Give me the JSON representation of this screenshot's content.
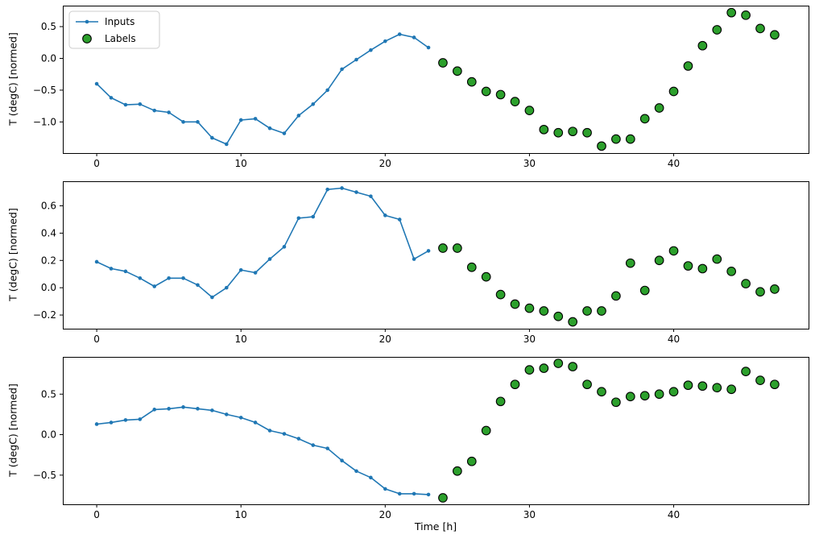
{
  "figure": {
    "xlabel": "Time [h]",
    "ylabel": "T (degC) [normed]",
    "legend": {
      "items": [
        {
          "label": "Inputs",
          "marker": "line-dot",
          "color": "#1f77b4"
        },
        {
          "label": "Labels",
          "marker": "circle",
          "color": "#2ca02c",
          "edge": "#000000"
        }
      ]
    }
  },
  "colors": {
    "inputs": "#1f77b4",
    "labels": "#2ca02c",
    "labels_edge": "#000000",
    "spine": "#000000",
    "background": "#ffffff"
  },
  "chart_data": [
    {
      "type": "line",
      "title": "",
      "xlabel": "",
      "ylabel": "T (degC) [normed]",
      "legend": true,
      "xlim": [
        -2.35,
        49.35
      ],
      "ylim": [
        -1.49,
        0.83
      ],
      "xticks": [
        0,
        10,
        20,
        30,
        40
      ],
      "xtick_labels": [
        "0",
        "10",
        "20",
        "30",
        "40"
      ],
      "yticks": [
        0.5,
        0.0,
        -0.5,
        -1.0
      ],
      "ytick_labels": [
        "0.5",
        "0.0",
        "−0.5",
        "−1.0"
      ],
      "grid": false,
      "series": [
        {
          "name": "Inputs",
          "type": "line",
          "color": "#1f77b4",
          "x": [
            0,
            1,
            2,
            3,
            4,
            5,
            6,
            7,
            8,
            9,
            10,
            11,
            12,
            13,
            14,
            15,
            16,
            17,
            18,
            19,
            20,
            21,
            22,
            23
          ],
          "values": [
            -0.4,
            -0.62,
            -0.73,
            -0.72,
            -0.82,
            -0.85,
            -1.0,
            -1.0,
            -1.25,
            -1.35,
            -0.97,
            -0.95,
            -1.1,
            -1.18,
            -0.9,
            -0.72,
            -0.5,
            -0.17,
            -0.02,
            0.13,
            0.27,
            0.38,
            0.33,
            0.17
          ]
        },
        {
          "name": "Labels",
          "type": "scatter",
          "color": "#2ca02c",
          "edge": "#000000",
          "x": [
            24,
            25,
            26,
            27,
            28,
            29,
            30,
            31,
            32,
            33,
            34,
            35,
            36,
            37,
            38,
            39,
            40,
            41,
            42,
            43,
            44,
            45,
            46,
            47
          ],
          "values": [
            -0.07,
            -0.2,
            -0.37,
            -0.52,
            -0.57,
            -0.68,
            -0.82,
            -1.12,
            -1.17,
            -1.15,
            -1.17,
            -1.38,
            -1.27,
            -1.27,
            -0.95,
            -0.78,
            -0.52,
            -0.12,
            0.2,
            0.45,
            0.72,
            0.68,
            0.47,
            0.37
          ]
        }
      ]
    },
    {
      "type": "line",
      "title": "",
      "xlabel": "",
      "ylabel": "T (degC) [normed]",
      "legend": false,
      "xlim": [
        -2.35,
        49.35
      ],
      "ylim": [
        -0.3,
        0.78
      ],
      "xticks": [
        0,
        10,
        20,
        30,
        40
      ],
      "xtick_labels": [
        "0",
        "10",
        "20",
        "30",
        "40"
      ],
      "yticks": [
        0.6,
        0.4,
        0.2,
        0.0,
        -0.2
      ],
      "ytick_labels": [
        "0.6",
        "0.4",
        "0.2",
        "0.0",
        "−0.2"
      ],
      "grid": false,
      "series": [
        {
          "name": "Inputs",
          "type": "line",
          "color": "#1f77b4",
          "x": [
            0,
            1,
            2,
            3,
            4,
            5,
            6,
            7,
            8,
            9,
            10,
            11,
            12,
            13,
            14,
            15,
            16,
            17,
            18,
            19,
            20,
            21,
            22,
            23
          ],
          "values": [
            0.19,
            0.14,
            0.12,
            0.07,
            0.01,
            0.07,
            0.07,
            0.02,
            -0.07,
            0.0,
            0.13,
            0.11,
            0.21,
            0.3,
            0.51,
            0.52,
            0.72,
            0.73,
            0.7,
            0.67,
            0.53,
            0.5,
            0.21,
            0.27
          ]
        },
        {
          "name": "Labels",
          "type": "scatter",
          "color": "#2ca02c",
          "edge": "#000000",
          "x": [
            24,
            25,
            26,
            27,
            28,
            29,
            30,
            31,
            32,
            33,
            34,
            35,
            36,
            37,
            38,
            39,
            40,
            41,
            42,
            43,
            44,
            45,
            46,
            47
          ],
          "values": [
            0.29,
            0.29,
            0.15,
            0.08,
            -0.05,
            -0.12,
            -0.15,
            -0.17,
            -0.21,
            -0.25,
            -0.17,
            -0.17,
            -0.06,
            0.18,
            -0.02,
            0.2,
            0.27,
            0.16,
            0.14,
            0.21,
            0.12,
            0.03,
            -0.03,
            -0.01
          ]
        }
      ]
    },
    {
      "type": "line",
      "title": "",
      "xlabel": "Time [h]",
      "ylabel": "T (degC) [normed]",
      "legend": false,
      "xlim": [
        -2.35,
        49.35
      ],
      "ylim": [
        -0.86,
        0.96
      ],
      "xticks": [
        0,
        10,
        20,
        30,
        40
      ],
      "xtick_labels": [
        "0",
        "10",
        "20",
        "30",
        "40"
      ],
      "yticks": [
        0.5,
        0.0,
        -0.5
      ],
      "ytick_labels": [
        "0.5",
        "0.0",
        "−0.5"
      ],
      "grid": false,
      "series": [
        {
          "name": "Inputs",
          "type": "line",
          "color": "#1f77b4",
          "x": [
            0,
            1,
            2,
            3,
            4,
            5,
            6,
            7,
            8,
            9,
            10,
            11,
            12,
            13,
            14,
            15,
            16,
            17,
            18,
            19,
            20,
            21,
            22,
            23
          ],
          "values": [
            0.13,
            0.15,
            0.18,
            0.19,
            0.31,
            0.32,
            0.34,
            0.32,
            0.3,
            0.25,
            0.21,
            0.15,
            0.05,
            0.01,
            -0.05,
            -0.13,
            -0.17,
            -0.32,
            -0.45,
            -0.53,
            -0.67,
            -0.73,
            -0.73,
            -0.74
          ]
        },
        {
          "name": "Labels",
          "type": "scatter",
          "color": "#2ca02c",
          "edge": "#000000",
          "x": [
            24,
            25,
            26,
            27,
            28,
            29,
            30,
            31,
            32,
            33,
            34,
            35,
            36,
            37,
            38,
            39,
            40,
            41,
            42,
            43,
            44,
            45,
            46,
            47
          ],
          "values": [
            -0.78,
            -0.45,
            -0.33,
            0.05,
            0.41,
            0.62,
            0.8,
            0.82,
            0.88,
            0.84,
            0.62,
            0.53,
            0.4,
            0.47,
            0.48,
            0.5,
            0.53,
            0.61,
            0.6,
            0.58,
            0.56,
            0.78,
            0.67,
            0.62
          ]
        }
      ]
    }
  ]
}
